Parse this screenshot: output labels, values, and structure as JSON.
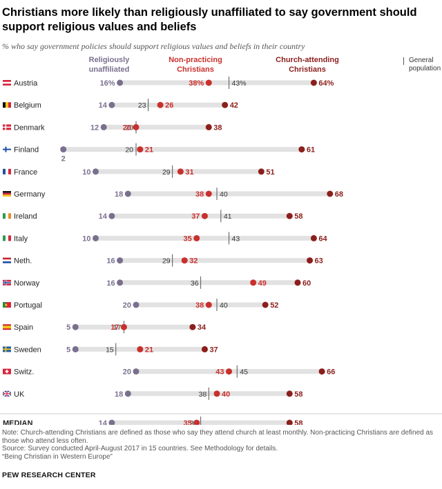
{
  "title": "Christians more likely than religiously unaffiliated to say government should support religious values and beliefs",
  "subtitle": "% who say government policies should support religious values and beliefs in their country",
  "legend": {
    "unaffiliated": "Religiously unaffiliated",
    "non_practicing": "Non-practicing Christians",
    "church_attending": "Church-attending Christians",
    "general": "General population"
  },
  "colors": {
    "unaffiliated": "#7a6f8e",
    "non_practicing": "#c9302c",
    "church_attending": "#8b1f1c",
    "track": "#e2e2e2",
    "general_tick": "#555555"
  },
  "chart_data": {
    "type": "dot",
    "scale": [
      0,
      100
    ],
    "categories": [
      "Austria",
      "Belgium",
      "Denmark",
      "Finland",
      "France",
      "Germany",
      "Ireland",
      "Italy",
      "Neth.",
      "Norway",
      "Portugal",
      "Spain",
      "Sweden",
      "Switz.",
      "UK",
      "MEDIAN"
    ],
    "series": [
      {
        "name": "Religiously unaffiliated",
        "key": "unaffiliated",
        "values": [
          16,
          14,
          12,
          2,
          10,
          18,
          14,
          10,
          16,
          16,
          20,
          5,
          5,
          20,
          18,
          14
        ]
      },
      {
        "name": "Non-practicing Christians",
        "key": "non_practicing",
        "values": [
          38,
          26,
          20,
          21,
          31,
          38,
          37,
          35,
          32,
          49,
          38,
          17,
          21,
          43,
          40,
          35
        ]
      },
      {
        "name": "Church-attending Christians",
        "key": "church_attending",
        "values": [
          64,
          42,
          38,
          61,
          51,
          68,
          58,
          64,
          63,
          60,
          52,
          34,
          37,
          66,
          58,
          58
        ]
      },
      {
        "name": "General population",
        "key": "general",
        "values": [
          43,
          23,
          20,
          20,
          29,
          40,
          41,
          43,
          29,
          36,
          40,
          17,
          15,
          45,
          38,
          36
        ]
      }
    ],
    "flags": [
      "austria-flag-icon",
      "belgium-flag-icon",
      "denmark-flag-icon",
      "finland-flag-icon",
      "france-flag-icon",
      "germany-flag-icon",
      "ireland-flag-icon",
      "italy-flag-icon",
      "netherlands-flag-icon",
      "norway-flag-icon",
      "portugal-flag-icon",
      "spain-flag-icon",
      "sweden-flag-icon",
      "switzerland-flag-icon",
      "uk-flag-icon",
      ""
    ],
    "percent_sign_row": "Austria"
  },
  "notes": [
    "Note: Church-attending Christians are defined as those who say they attend church at least monthly. Non-practicing Christians are defined as those who attend less often.",
    "Source: Survey conducted April-August 2017 in 15 countries. See Methodology for details.",
    "“Being Christian in Western Europe”"
  ],
  "footer": "PEW RESEARCH CENTER"
}
